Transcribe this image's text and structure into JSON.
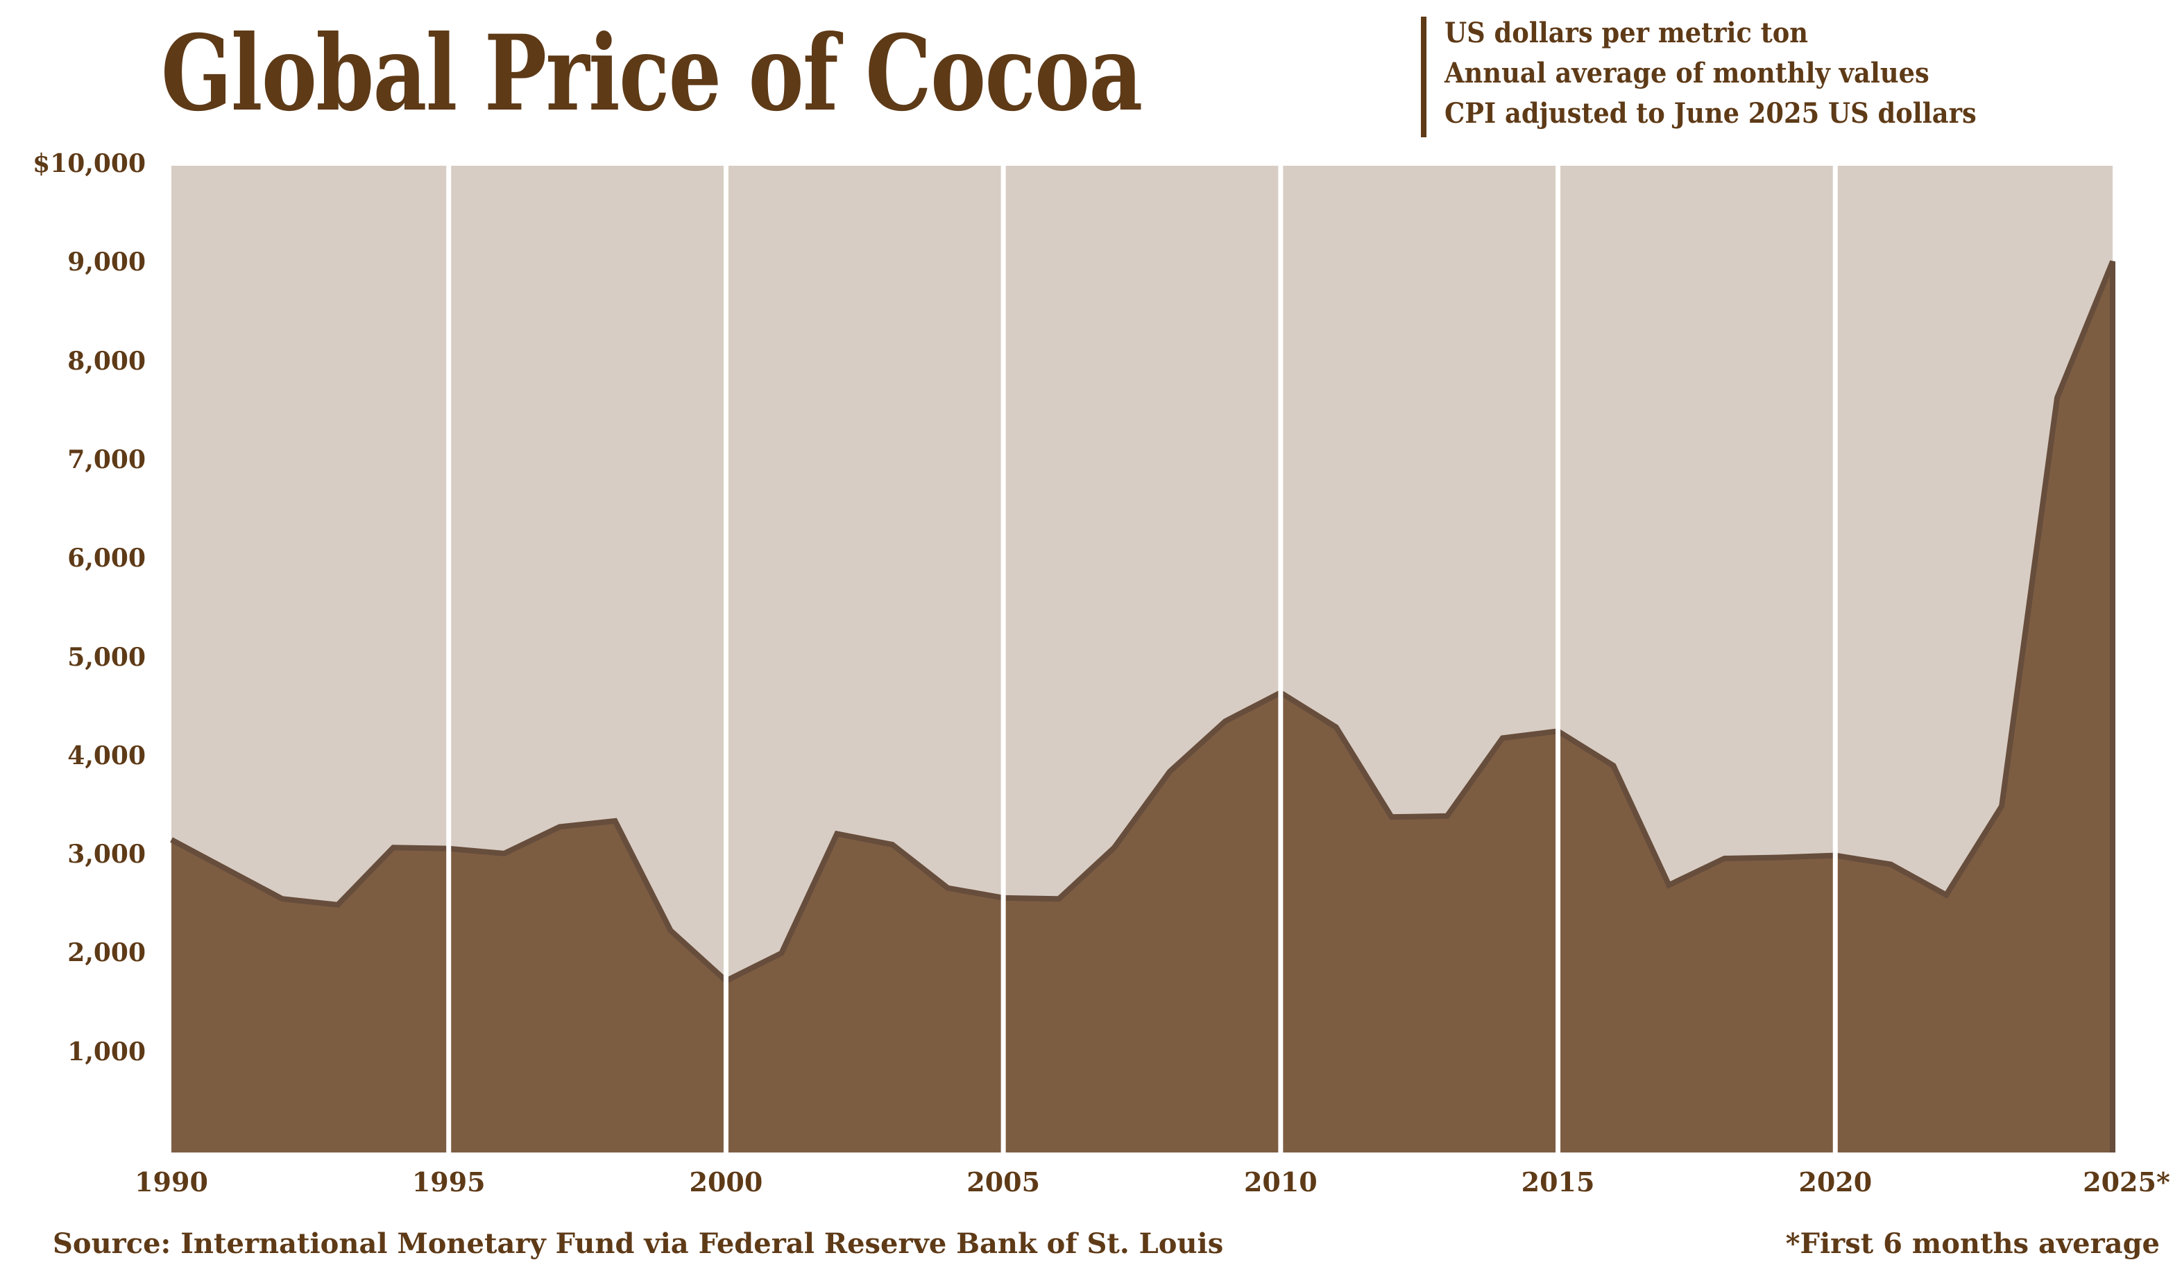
{
  "chart_data": {
    "type": "area",
    "title": "Global Price of Cocoa",
    "subtitle_lines": [
      "US dollars per metric ton",
      "Annual average of monthly values",
      "CPI adjusted to June 2025 US dollars"
    ],
    "xlabel": "",
    "ylabel": "",
    "x": [
      1990,
      1991,
      1992,
      1993,
      1994,
      1995,
      1996,
      1997,
      1998,
      1999,
      2000,
      2001,
      2002,
      2003,
      2004,
      2005,
      2006,
      2007,
      2008,
      2009,
      2010,
      2011,
      2012,
      2013,
      2014,
      2015,
      2016,
      2017,
      2018,
      2019,
      2020,
      2021,
      2022,
      2023,
      2024,
      2025
    ],
    "values": [
      3170,
      2870,
      2570,
      2510,
      3090,
      3080,
      3030,
      3300,
      3360,
      2250,
      1740,
      2020,
      3230,
      3120,
      2680,
      2580,
      2570,
      3090,
      3860,
      4370,
      4660,
      4310,
      3400,
      3410,
      4200,
      4270,
      3920,
      2710,
      2980,
      2990,
      3010,
      2920,
      2610,
      3510,
      7650,
      9030
    ],
    "xlim": [
      1990,
      2025
    ],
    "ylim": [
      0,
      10000
    ],
    "y_ticks": [
      1000,
      2000,
      3000,
      4000,
      5000,
      6000,
      7000,
      8000,
      9000,
      10000
    ],
    "y_tick_labels": [
      "1,000",
      "2,000",
      "3,000",
      "4,000",
      "5,000",
      "6,000",
      "7,000",
      "8,000",
      "9,000",
      "$10,000"
    ],
    "x_ticks": [
      1990,
      1995,
      2000,
      2005,
      2010,
      2015,
      2020,
      2025
    ],
    "x_tick_labels": [
      "1990",
      "1995",
      "2000",
      "2005",
      "2010",
      "2015",
      "2020",
      "2025*"
    ],
    "grid": "vertical every 5 years",
    "colors": {
      "text": "#5e3a17",
      "background_area": "#d8cdc4",
      "fill": "#7d5d42",
      "line": "#664d3c",
      "grid": "#ffffff"
    },
    "source": "Source: International Monetary Fund via Federal Reserve Bank of St. Louis",
    "footnote": "*First 6 months average"
  }
}
